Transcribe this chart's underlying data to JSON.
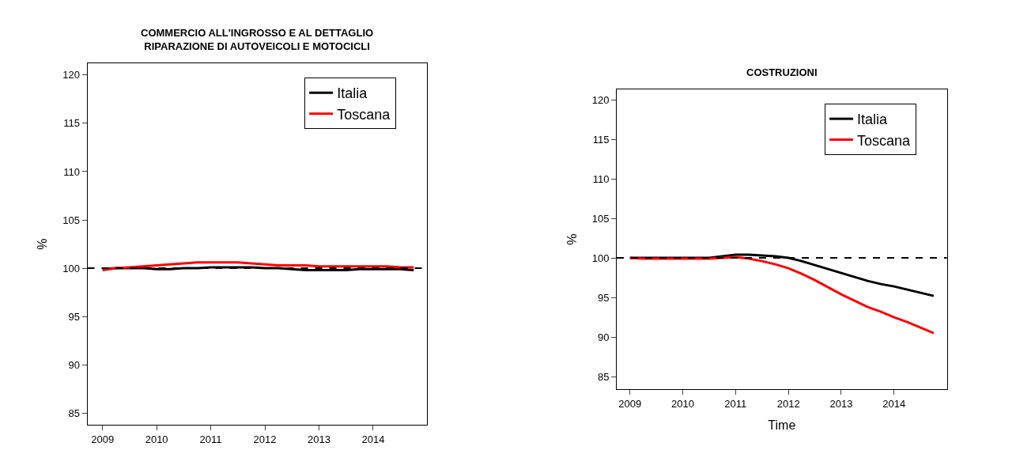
{
  "chart_data": [
    {
      "type": "line",
      "title": "COMMERCIO ALL'INGROSSO E AL DETTAGLIO\nRIPARAZIONE DI AUTOVEICOLI E MOTOCICLI",
      "ylabel": "%",
      "x": [
        2009,
        2009.25,
        2009.5,
        2009.75,
        2010,
        2010.25,
        2010.5,
        2010.75,
        2011,
        2011.25,
        2011.5,
        2011.75,
        2012,
        2012.25,
        2012.5,
        2012.75,
        2013,
        2013.25,
        2013.5,
        2013.75,
        2014,
        2014.25,
        2014.5,
        2014.75
      ],
      "series": [
        {
          "name": "Italia",
          "color": "#000000",
          "values": [
            99.9,
            100,
            100,
            100,
            99.9,
            99.9,
            100,
            100,
            100.1,
            100.1,
            100.1,
            100.1,
            100.0,
            100.0,
            99.9,
            99.8,
            99.8,
            99.8,
            99.8,
            99.9,
            99.9,
            99.9,
            99.9,
            99.8
          ]
        },
        {
          "name": "Toscana",
          "color": "#ff0000",
          "values": [
            99.8,
            100,
            100.1,
            100.2,
            100.3,
            100.4,
            100.5,
            100.6,
            100.6,
            100.6,
            100.6,
            100.5,
            100.4,
            100.3,
            100.3,
            100.3,
            100.2,
            100.2,
            100.2,
            100.2,
            100.2,
            100.2,
            100.1,
            100.1
          ]
        }
      ],
      "xlim": [
        2008.72,
        2014.99
      ],
      "xticks": [
        2009,
        2010,
        2011,
        2012,
        2013,
        2014
      ],
      "ylim": [
        83.8,
        121.2
      ],
      "yticks": [
        85,
        90,
        95,
        100,
        105,
        110,
        115,
        120
      ],
      "ref_lines": [
        {
          "axis": "y",
          "value": 100,
          "color": "#000000",
          "line_style": "dashed"
        }
      ],
      "grid": false,
      "legend": "top right",
      "line_style": "solid"
    },
    {
      "type": "line",
      "title": "COSTRUZIONI",
      "ylabel": "%",
      "xlabel": "Time",
      "x": [
        2009,
        2009.25,
        2009.5,
        2009.75,
        2010,
        2010.25,
        2010.5,
        2010.75,
        2011,
        2011.25,
        2011.5,
        2011.75,
        2012,
        2012.25,
        2012.5,
        2012.75,
        2013,
        2013.25,
        2013.5,
        2013.75,
        2014,
        2014.25,
        2014.5,
        2014.75
      ],
      "series": [
        {
          "name": "Italia",
          "color": "#000000",
          "values": [
            100,
            100,
            100,
            100,
            100,
            100,
            100,
            100.2,
            100.4,
            100.4,
            100.3,
            100.2,
            100.0,
            99.6,
            99.1,
            98.6,
            98.1,
            97.6,
            97.1,
            96.7,
            96.4,
            96.0,
            95.6,
            95.2
          ]
        },
        {
          "name": "Toscana",
          "color": "#ff0000",
          "values": [
            100,
            99.9,
            99.9,
            99.9,
            99.9,
            99.9,
            99.9,
            100.0,
            100.1,
            99.9,
            99.6,
            99.2,
            98.7,
            98.0,
            97.2,
            96.3,
            95.4,
            94.6,
            93.8,
            93.2,
            92.5,
            91.9,
            91.2,
            90.5
          ]
        }
      ],
      "xlim": [
        2008.75,
        2015.0
      ],
      "xticks": [
        2009,
        2010,
        2011,
        2012,
        2013,
        2014
      ],
      "ylim": [
        83.4,
        121.3
      ],
      "yticks": [
        85,
        90,
        95,
        100,
        105,
        110,
        115,
        120
      ],
      "ref_lines": [
        {
          "axis": "y",
          "value": 100,
          "color": "#000000",
          "line_style": "dashed"
        }
      ],
      "grid": false,
      "legend": "top right",
      "line_style": "solid"
    }
  ]
}
